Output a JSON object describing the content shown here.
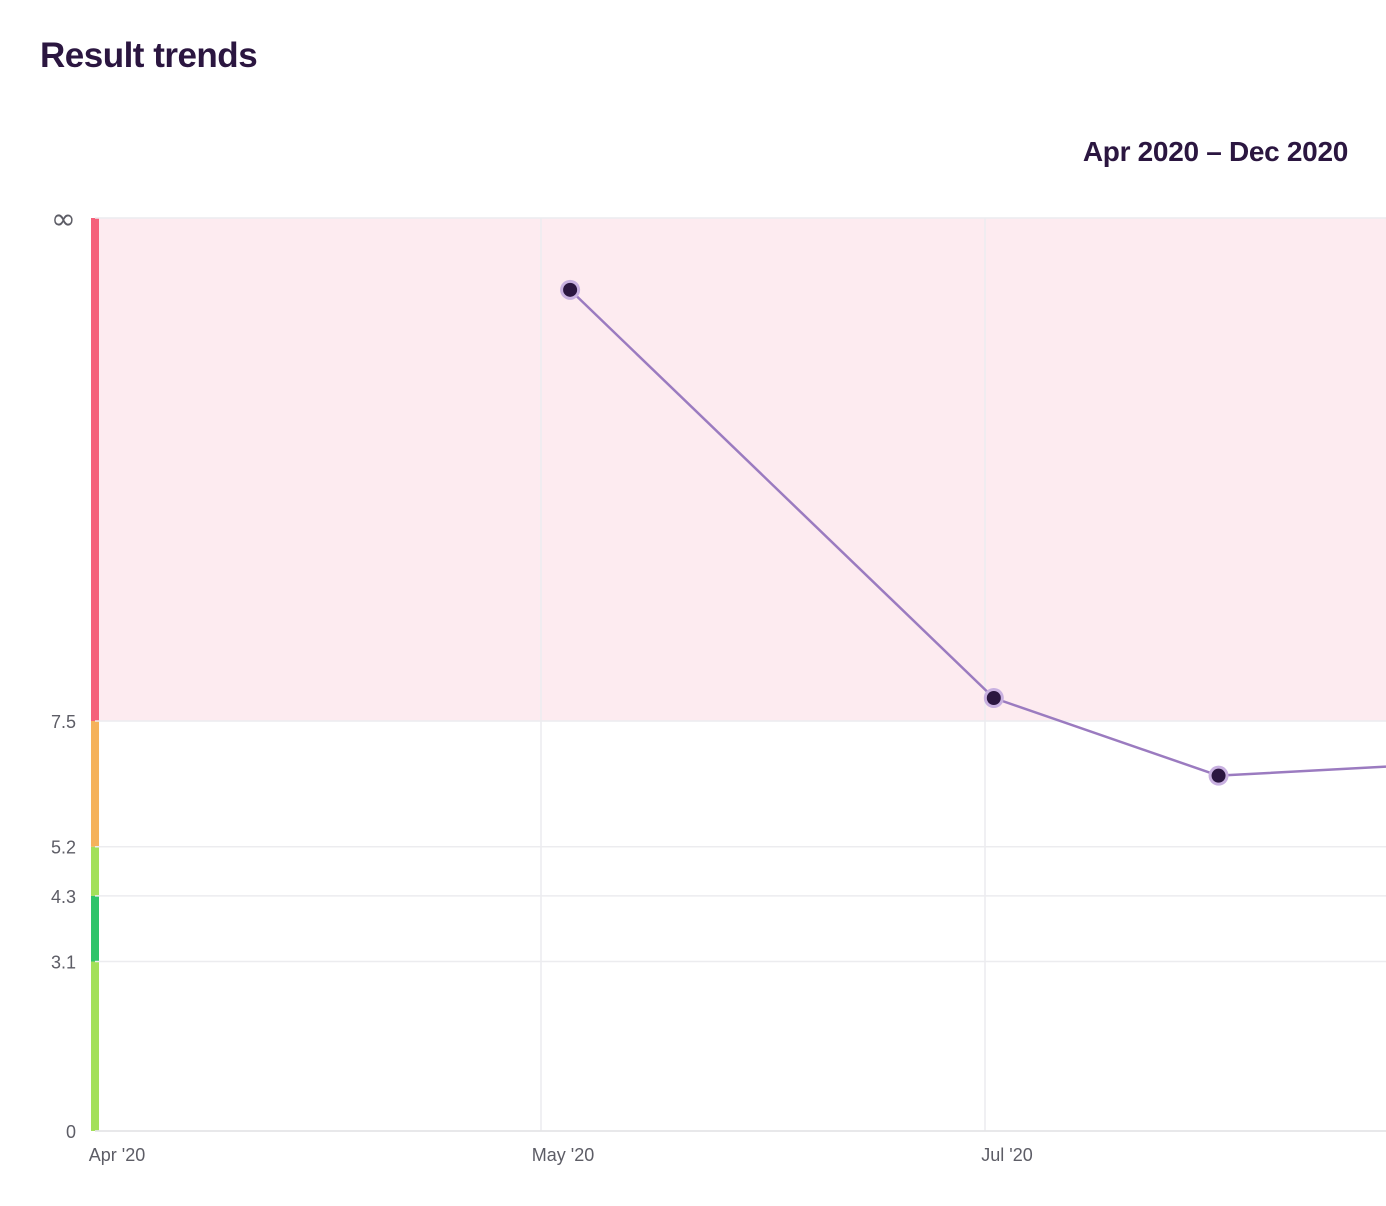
{
  "header": {
    "title": "Result trends",
    "date_range": "Apr 2020 – Dec 2020"
  },
  "chart_data": {
    "type": "line",
    "title": "Result trends",
    "subtitle": "Apr 2020 – Dec 2020",
    "x_axis": {
      "type": "date",
      "range": [
        "2020-04-01",
        "2020-09-30"
      ],
      "ticks": [
        {
          "label": "Apr '20",
          "value": "2020-04-01"
        },
        {
          "label": "May '20",
          "value": "2020-05-01"
        },
        {
          "label": "Jul '20",
          "value": "2020-07-01"
        }
      ]
    },
    "y_axis": {
      "scale": "piecewise (values above 7.5 compressed into band to ∞)",
      "ticks": [
        "0",
        "3.1",
        "4.3",
        "5.2",
        "7.5",
        "∞"
      ],
      "tick_values": [
        0,
        3.1,
        4.3,
        5.2,
        7.5,
        null
      ]
    },
    "reference_bands": [
      {
        "from": 0,
        "to": 3.1,
        "color": "#a3e05a"
      },
      {
        "from": 3.1,
        "to": 4.3,
        "color": "#2ec46a"
      },
      {
        "from": 4.3,
        "to": 5.2,
        "color": "#a3e05a"
      },
      {
        "from": 5.2,
        "to": 7.5,
        "color": "#f5b25b"
      },
      {
        "from": 7.5,
        "to": null,
        "color": "#f5607a",
        "shaded_color": "#fdebf0"
      }
    ],
    "series": [
      {
        "color": "#9b7bc0",
        "marker_color": "#2b1640",
        "points": [
          {
            "x": "2020-05-05",
            "y": 22.5
          },
          {
            "x": "2020-07-03",
            "y": 8.3
          },
          {
            "x": "2020-08-23",
            "y": 6.5
          }
        ],
        "continues_past_edge": true
      }
    ],
    "grid": true
  }
}
